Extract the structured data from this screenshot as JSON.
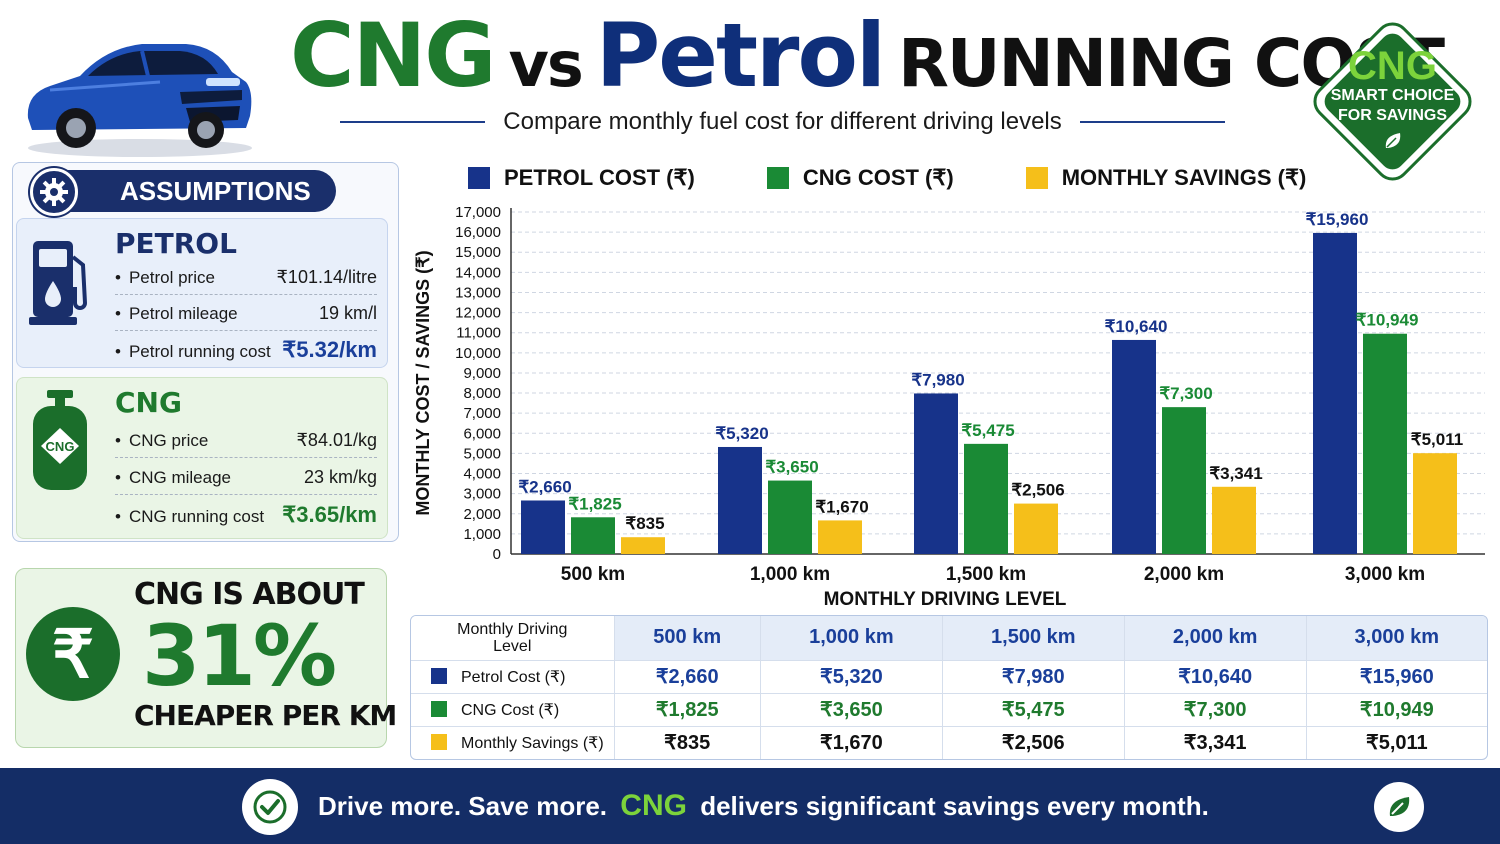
{
  "header": {
    "title_cng": "CNG",
    "title_vs": "vs",
    "title_petrol": "Petrol",
    "title_running_cost": "RUNNING COST",
    "subtitle": "Compare monthly fuel cost for different driving levels"
  },
  "badge": {
    "top": "CNG",
    "line1": "SMART CHOICE",
    "line2": "FOR SAVINGS"
  },
  "assumptions": {
    "heading": "ASSUMPTIONS",
    "petrol": {
      "title": "PETROL",
      "rows": [
        {
          "label": "Petrol price",
          "value": "₹101.14/litre"
        },
        {
          "label": "Petrol mileage",
          "value": "19 km/l"
        },
        {
          "label": "Petrol running cost",
          "value": "₹5.32/km"
        }
      ]
    },
    "cng": {
      "title": "CNG",
      "icon_label": "CNG",
      "rows": [
        {
          "label": "CNG price",
          "value": "₹84.01/kg"
        },
        {
          "label": "CNG mileage",
          "value": "23 km/kg"
        },
        {
          "label": "CNG running cost",
          "value": "₹3.65/km"
        }
      ]
    }
  },
  "promo": {
    "symbol": "₹",
    "top": "CNG IS ABOUT",
    "percent": "31%",
    "bottom": "CHEAPER PER KM"
  },
  "colors": {
    "petrol": "#17338a",
    "cng": "#1a8a35",
    "savings": "#f5bf1a"
  },
  "chart_data": {
    "type": "bar",
    "title": "",
    "xlabel": "MONTHLY DRIVING LEVEL",
    "ylabel": "MONTHLY COST / SAVINGS (₹)",
    "ylim": [
      0,
      17000
    ],
    "yticks": [
      0,
      1000,
      2000,
      3000,
      4000,
      5000,
      6000,
      7000,
      8000,
      9000,
      10000,
      11000,
      12000,
      13000,
      14000,
      15000,
      16000,
      17000
    ],
    "grid": true,
    "legend_position": "top",
    "categories": [
      "500 km",
      "1,000 km",
      "1,500 km",
      "2,000 km",
      "3,000 km"
    ],
    "series": [
      {
        "name": "PETROL COST (₹)",
        "values": [
          2660,
          5320,
          7980,
          10640,
          15960
        ],
        "labels": [
          "₹2,660",
          "₹5,320",
          "₹7,980",
          "₹10,640",
          "₹15,960"
        ]
      },
      {
        "name": "CNG COST (₹)",
        "values": [
          1825,
          3650,
          5475,
          7300,
          10949
        ],
        "labels": [
          "₹1,825",
          "₹3,650",
          "₹5,475",
          "₹7,300",
          "₹10,949"
        ]
      },
      {
        "name": "MONTHLY SAVINGS (₹)",
        "values": [
          835,
          1670,
          2506,
          3341,
          5011
        ],
        "labels": [
          "₹835",
          "₹1,670",
          "₹2,506",
          "₹3,341",
          "₹5,011"
        ]
      }
    ]
  },
  "table": {
    "corner_line1": "Monthly Driving",
    "corner_line2": "Level",
    "columns": [
      "500 km",
      "1,000 km",
      "1,500 km",
      "2,000 km",
      "3,000 km"
    ],
    "rows": [
      {
        "label": "Petrol Cost (₹)",
        "cells": [
          "₹2,660",
          "₹5,320",
          "₹7,980",
          "₹10,640",
          "₹15,960"
        ]
      },
      {
        "label": "CNG Cost (₹)",
        "cells": [
          "₹1,825",
          "₹3,650",
          "₹5,475",
          "₹7,300",
          "₹10,949"
        ]
      },
      {
        "label": "Monthly Savings (₹)",
        "cells": [
          "₹835",
          "₹1,670",
          "₹2,506",
          "₹3,341",
          "₹5,011"
        ]
      }
    ]
  },
  "footer": {
    "part1": "Drive more. Save more.",
    "highlight": "CNG",
    "part2": "delivers significant savings every month."
  }
}
